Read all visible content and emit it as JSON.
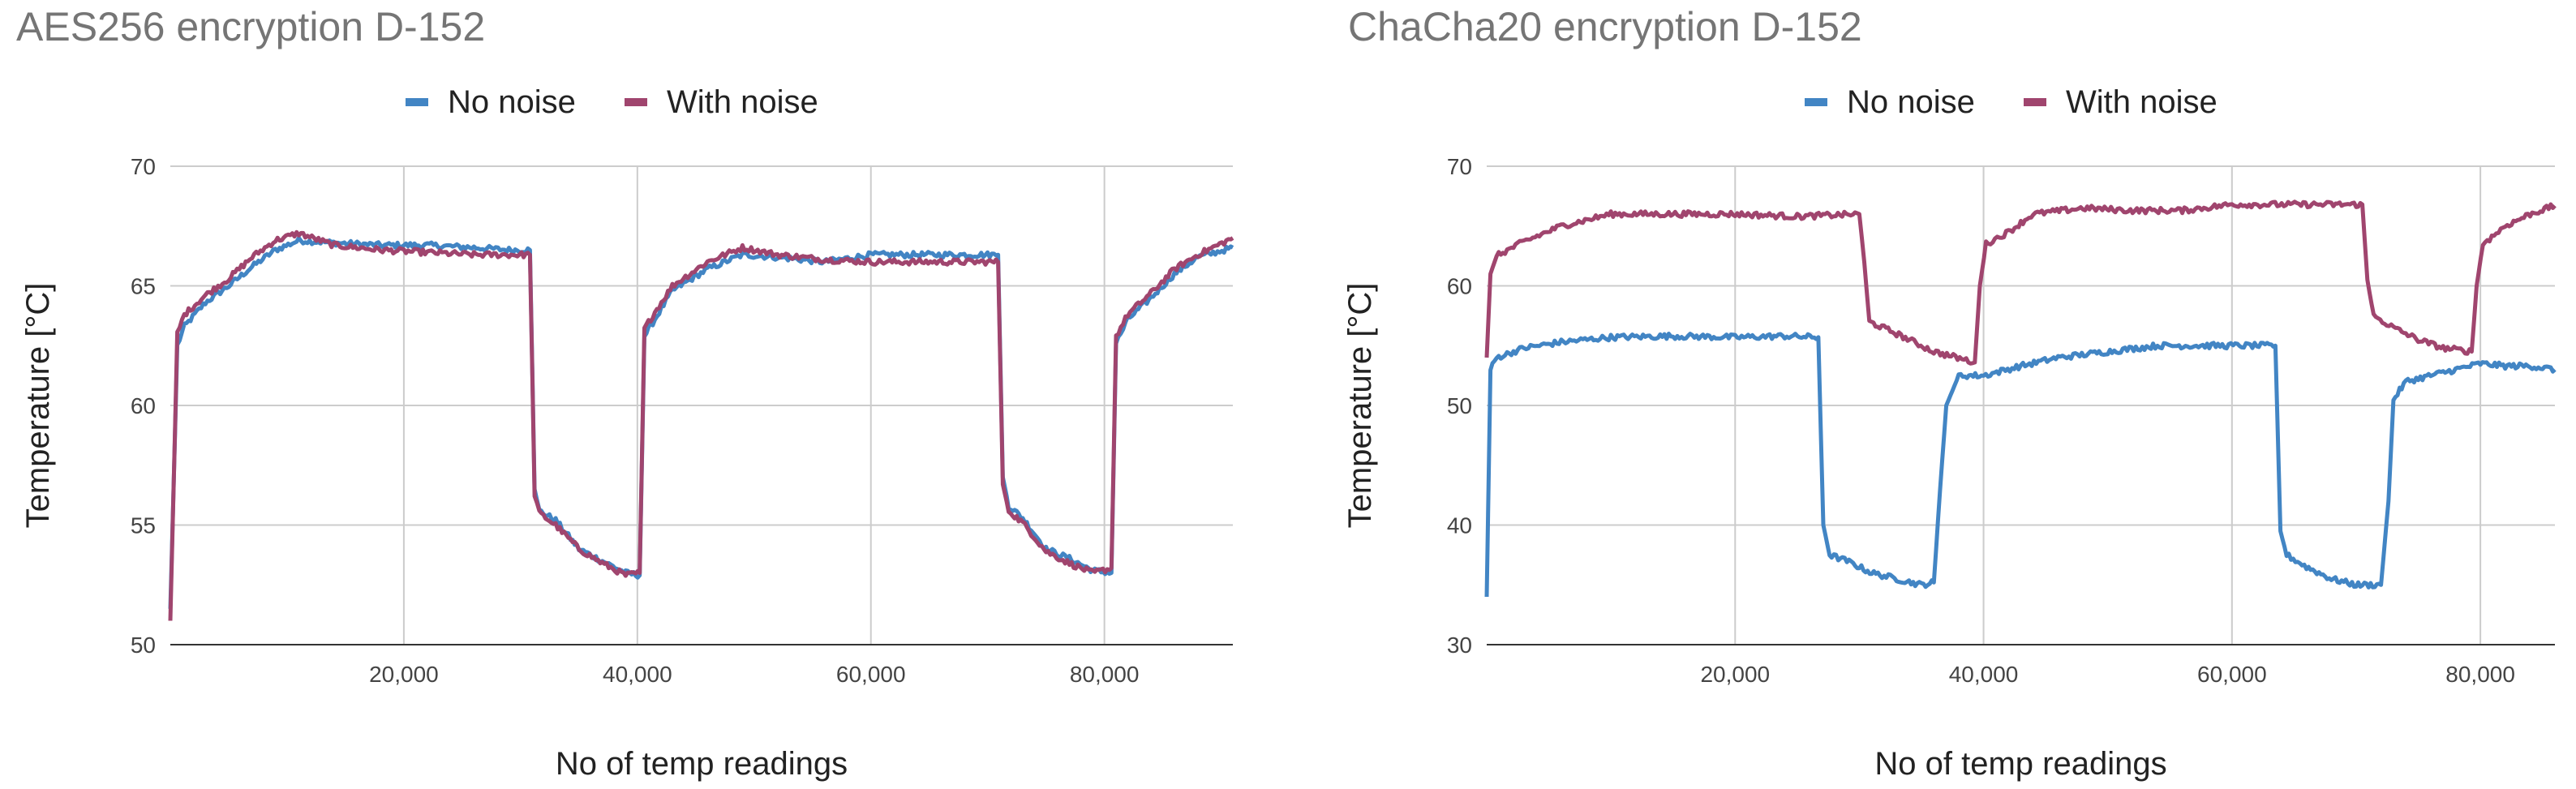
{
  "chart_data": [
    {
      "type": "line",
      "title": "AES256 encryption D-152",
      "xlabel": "No of temp readings",
      "ylabel": "Temperature [°C]",
      "xlim": [
        0,
        91000
      ],
      "ylim": [
        50,
        70
      ],
      "x_ticks": [
        20000,
        40000,
        60000,
        80000
      ],
      "x_tick_labels": [
        "20,000",
        "40,000",
        "60,000",
        "80,000"
      ],
      "y_ticks": [
        50,
        55,
        60,
        65,
        70
      ],
      "grid": true,
      "legend_position": "top",
      "series": [
        {
          "name": "No noise",
          "color": "#4285c4",
          "x": [
            0,
            600,
            1200,
            3000,
            5000,
            7000,
            9000,
            11000,
            14000,
            18000,
            22000,
            26000,
            29000,
            30800,
            31200,
            31600,
            33000,
            35000,
            37000,
            39000,
            40200,
            40600,
            41500,
            43000,
            46000,
            49000,
            52000,
            56000,
            60000,
            64000,
            68000,
            70900,
            71300,
            71800,
            73000,
            75000,
            77000,
            79000,
            80600,
            81000,
            82000,
            84000,
            86000,
            88000,
            91000
          ],
          "y": [
            51.5,
            62.5,
            63.3,
            64.3,
            65.0,
            65.8,
            66.5,
            66.9,
            66.8,
            66.7,
            66.7,
            66.6,
            66.5,
            66.5,
            56.5,
            55.6,
            55.2,
            54.0,
            53.5,
            53.0,
            52.9,
            62.9,
            63.6,
            64.8,
            65.7,
            66.3,
            66.2,
            66.0,
            66.3,
            66.3,
            66.3,
            66.3,
            57.0,
            55.8,
            55.3,
            54.0,
            53.6,
            53.1,
            53.0,
            62.6,
            63.6,
            64.5,
            65.5,
            66.2,
            66.6
          ]
        },
        {
          "name": "With noise",
          "color": "#a0456e",
          "x": [
            0,
            600,
            1200,
            3000,
            5000,
            7000,
            9000,
            11000,
            14000,
            18000,
            22000,
            26000,
            29000,
            30800,
            31200,
            31600,
            33000,
            35000,
            37000,
            39000,
            40200,
            40600,
            41500,
            43000,
            46000,
            49000,
            52000,
            56000,
            60000,
            64000,
            68000,
            70900,
            71300,
            71800,
            73000,
            75000,
            77000,
            79000,
            80600,
            81000,
            82000,
            84000,
            86000,
            88000,
            91000
          ],
          "y": [
            51.0,
            63.0,
            63.8,
            64.6,
            65.3,
            66.2,
            66.9,
            67.2,
            66.7,
            66.5,
            66.4,
            66.3,
            66.3,
            66.3,
            56.3,
            55.5,
            55.0,
            54.0,
            53.4,
            52.9,
            53.0,
            63.2,
            63.9,
            65.0,
            66.0,
            66.6,
            66.3,
            66.1,
            66.0,
            66.0,
            66.0,
            66.0,
            56.7,
            55.6,
            55.1,
            53.9,
            53.4,
            53.0,
            53.2,
            62.9,
            63.8,
            64.7,
            65.7,
            66.3,
            67.0
          ]
        }
      ]
    },
    {
      "type": "line",
      "title": "ChaCha20 encryption D-152",
      "xlabel": "No of temp readings",
      "ylabel": "Temperature [°C]",
      "xlim": [
        0,
        86000
      ],
      "ylim": [
        30,
        70
      ],
      "x_ticks": [
        20000,
        40000,
        60000,
        80000
      ],
      "x_tick_labels": [
        "20,000",
        "40,000",
        "60,000",
        "80,000"
      ],
      "y_ticks": [
        30,
        40,
        50,
        60,
        70
      ],
      "grid": true,
      "legend_position": "top",
      "series": [
        {
          "name": "No noise",
          "color": "#4285c4",
          "x": [
            0,
            300,
            800,
            3000,
            6000,
            10000,
            15000,
            20000,
            24000,
            26700,
            27100,
            27600,
            29000,
            31000,
            33000,
            35000,
            36000,
            36500,
            37000,
            38000,
            40000,
            43000,
            46000,
            50000,
            54000,
            58000,
            62000,
            63500,
            63900,
            64400,
            66000,
            68000,
            70000,
            72000,
            72600,
            73000,
            74000,
            76000,
            78000,
            80000,
            82000,
            84000,
            86000
          ],
          "y": [
            34.0,
            53.0,
            54.0,
            54.8,
            55.3,
            55.7,
            55.8,
            55.7,
            55.8,
            55.7,
            40.0,
            37.5,
            37.0,
            36.0,
            35.5,
            35.0,
            35.2,
            43.0,
            50.0,
            52.5,
            52.5,
            53.3,
            54.0,
            54.5,
            55.0,
            55.0,
            55.0,
            55.0,
            39.5,
            37.5,
            36.5,
            35.5,
            35.0,
            35.0,
            42.0,
            50.5,
            52.0,
            52.5,
            53.0,
            53.5,
            53.3,
            53.3,
            53.0
          ]
        },
        {
          "name": "With noise",
          "color": "#a0456e",
          "x": [
            0,
            300,
            800,
            3000,
            6000,
            10000,
            15000,
            20000,
            25000,
            30000,
            30400,
            30800,
            33000,
            36000,
            39300,
            39700,
            40200,
            42000,
            44000,
            48000,
            52000,
            56000,
            60000,
            64000,
            68000,
            70500,
            70900,
            71400,
            73000,
            75000,
            77000,
            79300,
            79700,
            80200,
            82000,
            84000,
            86000
          ],
          "y": [
            54.0,
            61.0,
            62.5,
            63.7,
            65.0,
            66.0,
            66.0,
            66.0,
            65.8,
            66.0,
            62.0,
            57.0,
            56.0,
            54.5,
            53.6,
            60.0,
            63.5,
            64.5,
            66.0,
            66.5,
            66.3,
            66.3,
            66.8,
            66.8,
            66.8,
            66.8,
            60.5,
            57.5,
            56.5,
            55.5,
            54.8,
            54.5,
            60.0,
            63.5,
            65.0,
            66.0,
            66.7
          ]
        }
      ]
    }
  ]
}
